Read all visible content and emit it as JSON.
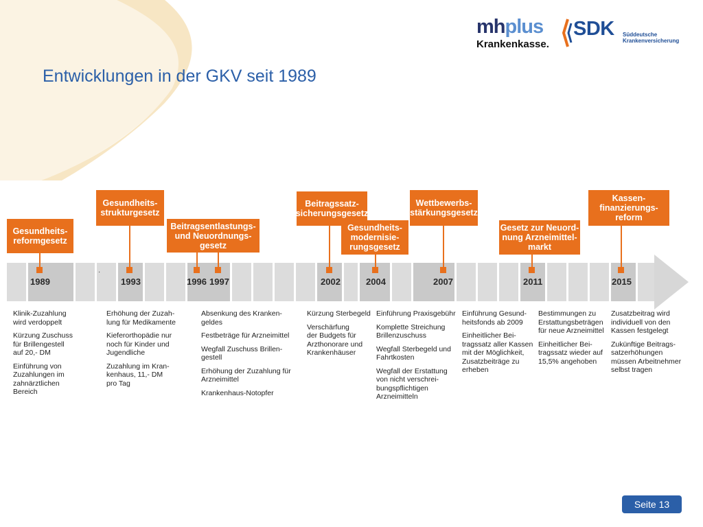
{
  "page": {
    "title": "Entwicklungen in der GKV seit 1989",
    "page_number": "Seite 13"
  },
  "logos": {
    "mh_part1": "mh",
    "mh_part2": "plus",
    "mh_sub": "Krankenkasse.",
    "sdk_main": "SDK",
    "sdk_sub_line1": "Süddeutsche",
    "sdk_sub_line2": "Krankenversicherung"
  },
  "colors": {
    "accent": "#e8701d",
    "title_blue": "#2b5fa8",
    "band_gray": "#dcdcdc"
  },
  "timeline": {
    "years": [
      "1989",
      "1993",
      "1996",
      "1997",
      "2002",
      "2004",
      "2007",
      "2011",
      "2015"
    ],
    "laws": [
      "Gesundheits-\nreformgesetz",
      "Gesundheits-\nstrukturgesetz",
      "Beitragsentlastungs-\nund Neuordnungs-\ngesetz",
      "Beitragssatz-\nsicherungsgesetz",
      "Gesundheits-\nmodernisie-\nrungsgesetz",
      "Wettbewerbs-\nstärkungsgesetz",
      "Gesetz zur  Neuord-\nnung Arzneimittel-\nmarkt",
      "Kassen-\nfinanzierungs-\nreform"
    ],
    "notes": {
      "c1989": [
        "Klinik-Zuzahlung\nwird verdoppelt",
        "Kürzung Zuschuss\nfür Brillengestell\nauf 20,- DM",
        "Einführung von\nZuzahlungen im\nzahnärztlichen\nBereich"
      ],
      "c1993": [
        "Erhöhung der Zuzah-\nlung für Medikamente",
        "Kieferorthopädie nur\nnoch für Kinder und\nJugendliche",
        "Zuzahlung im Kran-\nkenhaus, 11,- DM\npro Tag"
      ],
      "c1996": [
        "Absenkung des Kranken-\ngeldes",
        "Festbeträge für Arzneimittel",
        "Wegfall Zuschuss Brillen-\ngestell",
        "Erhöhung der Zuzahlung für\nArzneimittel",
        "Krankenhaus-Notopfer"
      ],
      "c2002": [
        "Kürzung Sterbegeld",
        "Verschärfung\nder Budgets für\nArzthonorare und\nKrankenhäuser"
      ],
      "c2004": [
        "Einführung Praxisgebühr",
        "Komplette Streichung\nBrillenzuschuss",
        "Wegfall Sterbegeld und\nFahrtkosten",
        "Wegfall der Erstattung\nvon nicht verschrei-\nbungspflichtigen\nArzneimitteln"
      ],
      "c2007": [
        "Einführung Gesund-\nheitsfonds ab 2009",
        "Einheitlicher Bei-\ntragssatz aller Kassen\nmit der Möglichkeit,\nZusatzbeiträge zu\nerheben"
      ],
      "c2011": [
        "Bestimmungen zu\nErstattungsbeträgen\nfür neue Arzneimittel",
        "Einheitlicher Bei-\ntragssatz wieder auf\n15,5% angehoben"
      ],
      "c2015": [
        "Zusatzbeitrag wird\nindividuell von den\nKassen festgelegt",
        "Zukünftige Beitrags-\nsatzerhöhungen\nmüssen Arbeitnehmer\nselbst tragen"
      ]
    }
  }
}
